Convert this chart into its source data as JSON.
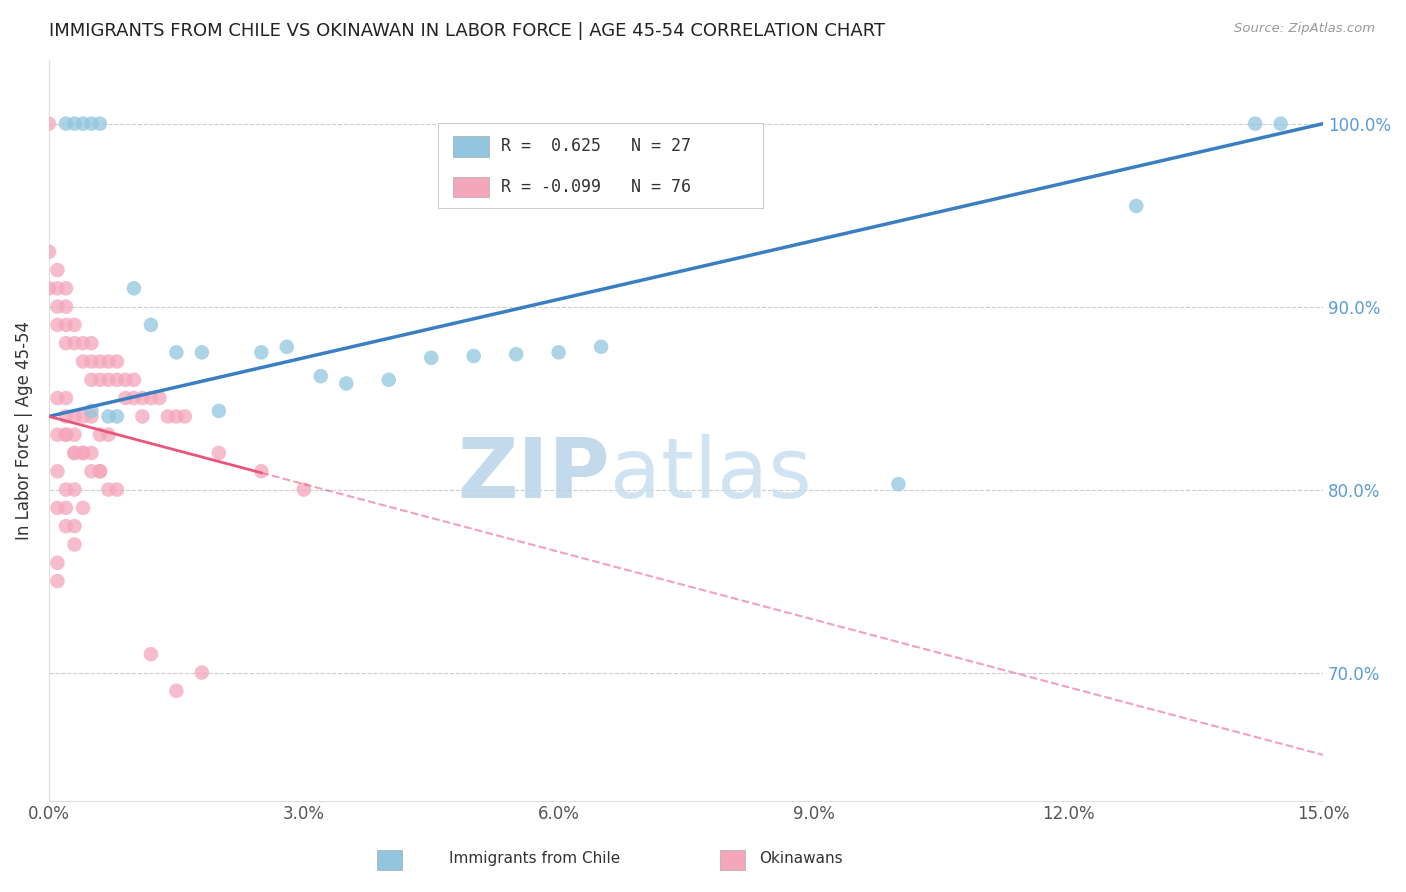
{
  "title": "IMMIGRANTS FROM CHILE VS OKINAWAN IN LABOR FORCE | AGE 45-54 CORRELATION CHART",
  "source": "Source: ZipAtlas.com",
  "ylabel": "In Labor Force | Age 45-54",
  "watermark": "ZIPatlas",
  "xmin": 0.0,
  "xmax": 0.15,
  "ymin": 0.63,
  "ymax": 1.035,
  "yticks": [
    0.7,
    0.8,
    0.9,
    1.0
  ],
  "ytick_labels": [
    "70.0%",
    "80.0%",
    "90.0%",
    "100.0%"
  ],
  "xticks": [
    0.0,
    0.03,
    0.06,
    0.09,
    0.12,
    0.15
  ],
  "xtick_labels": [
    "0.0%",
    "3.0%",
    "6.0%",
    "9.0%",
    "12.0%",
    "15.0%"
  ],
  "blue_color": "#92c5de",
  "pink_color": "#f4a6ba",
  "blue_line_color": "#3a7fc1",
  "pink_line_color": "#e8547a",
  "grid_color": "#cccccc",
  "watermark_color": "#cce0f0",
  "blue_scatter_x": [
    0.002,
    0.003,
    0.004,
    0.005,
    0.006,
    0.005,
    0.007,
    0.008,
    0.01,
    0.012,
    0.015,
    0.018,
    0.02,
    0.025,
    0.028,
    0.032,
    0.035,
    0.04,
    0.045,
    0.05,
    0.055,
    0.06,
    0.065,
    0.1,
    0.128,
    0.142,
    0.145
  ],
  "blue_scatter_y": [
    1.0,
    1.0,
    1.0,
    1.0,
    1.0,
    0.843,
    0.84,
    0.84,
    0.91,
    0.89,
    0.875,
    0.875,
    0.843,
    0.875,
    0.878,
    0.862,
    0.858,
    0.86,
    0.872,
    0.873,
    0.874,
    0.875,
    0.878,
    0.803,
    0.955,
    1.0,
    1.0
  ],
  "pink_scatter_x": [
    0.0,
    0.0,
    0.0,
    0.001,
    0.001,
    0.001,
    0.001,
    0.002,
    0.002,
    0.002,
    0.002,
    0.003,
    0.003,
    0.004,
    0.004,
    0.005,
    0.005,
    0.005,
    0.006,
    0.006,
    0.007,
    0.007,
    0.008,
    0.008,
    0.009,
    0.009,
    0.01,
    0.01,
    0.011,
    0.011,
    0.012,
    0.013,
    0.014,
    0.015,
    0.016,
    0.001,
    0.002,
    0.003,
    0.004,
    0.005,
    0.006,
    0.007,
    0.001,
    0.002,
    0.003,
    0.004,
    0.005,
    0.006,
    0.001,
    0.002,
    0.003,
    0.004,
    0.001,
    0.002,
    0.003,
    0.002,
    0.003,
    0.001,
    0.001,
    0.002,
    0.002,
    0.003,
    0.003,
    0.004,
    0.005,
    0.006,
    0.007,
    0.008,
    0.02,
    0.025,
    0.03,
    0.015,
    0.018,
    0.012
  ],
  "pink_scatter_y": [
    1.0,
    0.93,
    0.91,
    0.92,
    0.91,
    0.9,
    0.89,
    0.91,
    0.9,
    0.89,
    0.88,
    0.89,
    0.88,
    0.88,
    0.87,
    0.88,
    0.87,
    0.86,
    0.87,
    0.86,
    0.87,
    0.86,
    0.87,
    0.86,
    0.86,
    0.85,
    0.86,
    0.85,
    0.85,
    0.84,
    0.85,
    0.85,
    0.84,
    0.84,
    0.84,
    0.85,
    0.85,
    0.84,
    0.84,
    0.84,
    0.83,
    0.83,
    0.83,
    0.83,
    0.82,
    0.82,
    0.82,
    0.81,
    0.81,
    0.8,
    0.8,
    0.79,
    0.79,
    0.79,
    0.78,
    0.78,
    0.77,
    0.76,
    0.75,
    0.84,
    0.83,
    0.83,
    0.82,
    0.82,
    0.81,
    0.81,
    0.8,
    0.8,
    0.82,
    0.81,
    0.8,
    0.69,
    0.7,
    0.71
  ]
}
